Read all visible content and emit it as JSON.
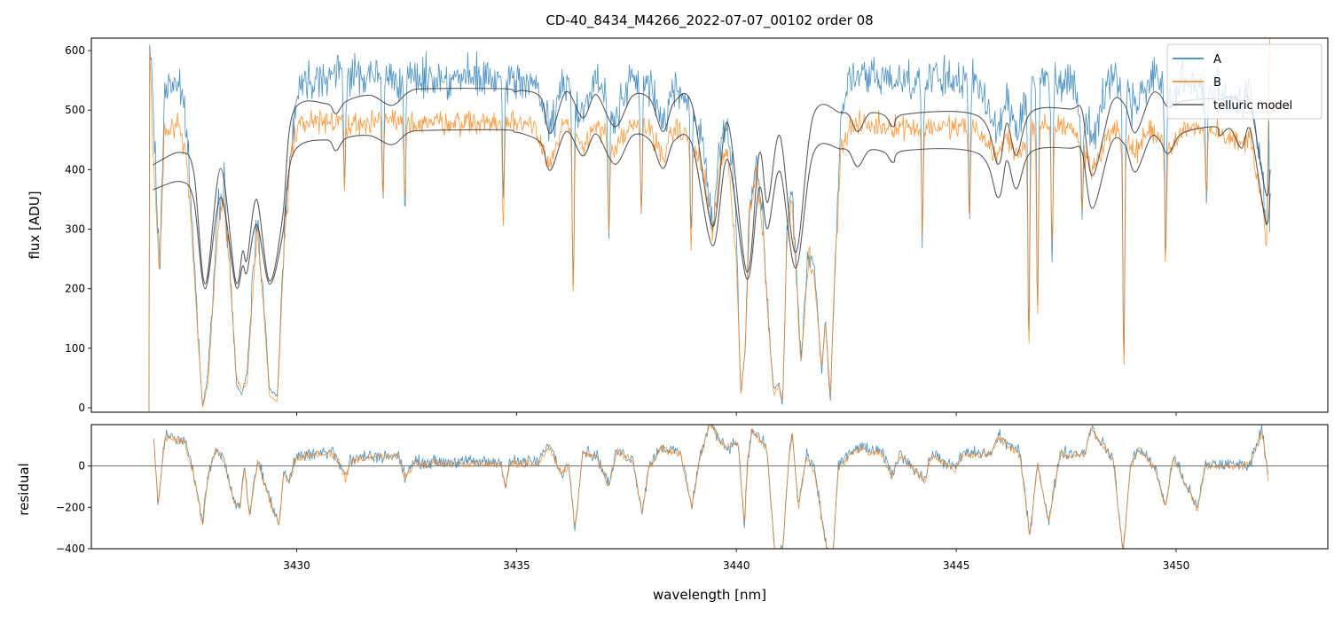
{
  "chart_data": [
    {
      "type": "line",
      "panel": "flux",
      "title": "CD-40_8434_M4266_2022-07-07_00102  order 08",
      "ylabel": "flux [ADU]",
      "xlim": [
        3425.33,
        3453.45
      ],
      "ylim": [
        -7.5,
        621
      ],
      "yticks": [
        0,
        100,
        200,
        300,
        400,
        500,
        600
      ],
      "yticklabels": [
        "0",
        "100",
        "200",
        "300",
        "400",
        "500",
        "600"
      ],
      "legend": {
        "position": "top-right",
        "labels": [
          "A",
          "B",
          "telluric model"
        ]
      },
      "colors": {
        "A": "#1f77b4",
        "B": "#ff7f0e",
        "telluric": "#333333"
      },
      "noise_rms": {
        "A": 24,
        "B": 14
      },
      "flux_knots_lambda_A_B": [
        [
          3426.64,
          -10,
          -10
        ],
        [
          3426.65,
          620,
          620
        ],
        [
          3426.73,
          520,
          430
        ],
        [
          3426.88,
          230,
          220
        ],
        [
          3427.0,
          540,
          470
        ],
        [
          3427.3,
          550,
          480
        ],
        [
          3427.5,
          470,
          420
        ],
        [
          3427.74,
          150,
          140
        ],
        [
          3427.86,
          0,
          0
        ],
        [
          3427.98,
          60,
          40
        ],
        [
          3428.21,
          320,
          300
        ],
        [
          3428.35,
          380,
          350
        ],
        [
          3428.47,
          250,
          240
        ],
        [
          3428.63,
          40,
          50
        ],
        [
          3428.75,
          20,
          30
        ],
        [
          3428.87,
          60,
          40
        ],
        [
          3429.01,
          230,
          200
        ],
        [
          3429.11,
          330,
          300
        ],
        [
          3429.23,
          200,
          180
        ],
        [
          3429.38,
          30,
          20
        ],
        [
          3429.56,
          20,
          10
        ],
        [
          3429.72,
          300,
          280
        ],
        [
          3429.86,
          430,
          410
        ],
        [
          3430.02,
          540,
          480
        ],
        [
          3430.52,
          560,
          480
        ],
        [
          3435.36,
          550,
          480
        ],
        [
          3435.77,
          470,
          410
        ],
        [
          3436.07,
          545,
          475
        ],
        [
          3436.51,
          500,
          440
        ],
        [
          3436.81,
          550,
          480
        ],
        [
          3437.24,
          490,
          430
        ],
        [
          3437.64,
          550,
          475
        ],
        [
          3438.04,
          540,
          470
        ],
        [
          3438.33,
          480,
          420
        ],
        [
          3438.59,
          540,
          470
        ],
        [
          3438.99,
          520,
          450
        ],
        [
          3439.29,
          420,
          380
        ],
        [
          3439.46,
          300,
          280
        ],
        [
          3439.6,
          420,
          400
        ],
        [
          3439.8,
          480,
          430
        ],
        [
          3440.0,
          300,
          250
        ],
        [
          3440.1,
          20,
          20
        ],
        [
          3440.2,
          100,
          100
        ],
        [
          3440.3,
          350,
          320
        ],
        [
          3440.44,
          420,
          400
        ],
        [
          3440.6,
          320,
          300
        ],
        [
          3440.77,
          100,
          100
        ],
        [
          3440.85,
          30,
          20
        ],
        [
          3440.97,
          40,
          40
        ],
        [
          3441.05,
          0,
          10
        ],
        [
          3441.15,
          300,
          280
        ],
        [
          3441.25,
          380,
          360
        ],
        [
          3441.35,
          250,
          230
        ],
        [
          3441.47,
          80,
          70
        ],
        [
          3441.65,
          280,
          260
        ],
        [
          3441.81,
          200,
          190
        ],
        [
          3441.94,
          60,
          70
        ],
        [
          3442.02,
          140,
          140
        ],
        [
          3442.14,
          10,
          20
        ],
        [
          3442.22,
          200,
          200
        ],
        [
          3442.38,
          500,
          440
        ],
        [
          3442.62,
          555,
          475
        ],
        [
          3445.44,
          550,
          470
        ],
        [
          3445.95,
          470,
          420
        ],
        [
          3446.15,
          520,
          460
        ],
        [
          3446.37,
          470,
          420
        ],
        [
          3446.75,
          555,
          470
        ],
        [
          3447.6,
          550,
          475
        ],
        [
          3448.1,
          460,
          400
        ],
        [
          3448.53,
          560,
          470
        ],
        [
          3449.07,
          510,
          430
        ],
        [
          3449.48,
          560,
          470
        ],
        [
          3449.88,
          520,
          430
        ],
        [
          3450.18,
          545,
          470
        ],
        [
          3450.89,
          540,
          470
        ],
        [
          3451.49,
          510,
          440
        ],
        [
          3451.69,
          530,
          460
        ],
        [
          3451.98,
          380,
          330
        ],
        [
          3452.06,
          300,
          260
        ],
        [
          3452.12,
          500,
          620
        ],
        [
          3452.14,
          0,
          620
        ]
      ],
      "narrow_lines_lambda_Amin_Bmin": [
        [
          3431.09,
          380,
          375
        ],
        [
          3431.96,
          350,
          360
        ],
        [
          3432.46,
          300,
          340
        ],
        [
          3434.7,
          320,
          310
        ],
        [
          3436.29,
          200,
          190
        ],
        [
          3437.1,
          300,
          300
        ],
        [
          3437.84,
          330,
          340
        ],
        [
          3438.97,
          270,
          255
        ],
        [
          3444.23,
          280,
          300
        ],
        [
          3445.3,
          320,
          320
        ],
        [
          3446.65,
          110,
          95
        ],
        [
          3446.85,
          160,
          150
        ],
        [
          3447.18,
          250,
          260
        ],
        [
          3447.86,
          330,
          330
        ],
        [
          3448.81,
          70,
          60
        ],
        [
          3449.76,
          270,
          255
        ],
        [
          3450.69,
          350,
          350
        ]
      ],
      "telluric_model_knots_lambda_upper_lower": [
        [
          3426.73,
          408,
          366
        ],
        [
          3427.36,
          429,
          380
        ],
        [
          3427.66,
          395,
          348
        ],
        [
          3427.92,
          208,
          200
        ],
        [
          3428.27,
          402,
          353
        ],
        [
          3428.61,
          213,
          205
        ],
        [
          3428.77,
          263,
          238
        ],
        [
          3428.87,
          249,
          228
        ],
        [
          3429.09,
          350,
          308
        ],
        [
          3429.38,
          213,
          208
        ],
        [
          3429.68,
          320,
          290
        ],
        [
          3429.92,
          496,
          427
        ],
        [
          3430.67,
          511,
          450
        ],
        [
          3430.89,
          494,
          432
        ],
        [
          3431.13,
          515,
          453
        ],
        [
          3431.67,
          525,
          457
        ],
        [
          3432.16,
          508,
          442
        ],
        [
          3432.54,
          530,
          462
        ],
        [
          3432.94,
          536,
          466
        ],
        [
          3434.7,
          536,
          467
        ],
        [
          3434.96,
          531,
          463
        ],
        [
          3435.16,
          533,
          460
        ],
        [
          3435.56,
          520,
          444
        ],
        [
          3435.77,
          461,
          399
        ],
        [
          3436.13,
          531,
          464
        ],
        [
          3436.51,
          487,
          423
        ],
        [
          3436.81,
          526,
          460
        ],
        [
          3437.24,
          472,
          409
        ],
        [
          3437.64,
          524,
          457
        ],
        [
          3438.04,
          518,
          449
        ],
        [
          3438.33,
          464,
          402
        ],
        [
          3438.59,
          514,
          449
        ],
        [
          3438.99,
          509,
          442
        ],
        [
          3439.46,
          305,
          272
        ],
        [
          3439.8,
          479,
          417
        ],
        [
          3440.24,
          228,
          216
        ],
        [
          3440.52,
          427,
          369
        ],
        [
          3440.71,
          345,
          301
        ],
        [
          3440.99,
          457,
          397
        ],
        [
          3441.35,
          261,
          235
        ],
        [
          3441.75,
          491,
          427
        ],
        [
          3442.36,
          496,
          435
        ],
        [
          3442.56,
          491,
          430
        ],
        [
          3442.76,
          464,
          405
        ],
        [
          3443.02,
          494,
          432
        ],
        [
          3443.37,
          491,
          429
        ],
        [
          3443.57,
          472,
          412
        ],
        [
          3443.83,
          493,
          432
        ],
        [
          3445.5,
          490,
          427
        ],
        [
          3445.95,
          409,
          353
        ],
        [
          3446.15,
          478,
          415
        ],
        [
          3446.37,
          424,
          368
        ],
        [
          3446.71,
          497,
          430
        ],
        [
          3447.6,
          502,
          436
        ],
        [
          3447.86,
          499,
          430
        ],
        [
          3448.1,
          390,
          335
        ],
        [
          3448.53,
          511,
          445
        ],
        [
          3448.83,
          509,
          442
        ],
        [
          3449.07,
          462,
          396
        ],
        [
          3449.42,
          524,
          454
        ],
        [
          3449.62,
          527,
          450
        ],
        [
          3449.82,
          505,
          427
        ],
        [
          3450.14,
          515,
          461
        ],
        [
          3450.89,
          520,
          472
        ],
        [
          3450.99,
          518,
          457
        ],
        [
          3451.23,
          522,
          469
        ],
        [
          3451.49,
          515,
          436
        ],
        [
          3451.69,
          512,
          466
        ],
        [
          3452.04,
          360,
          312
        ],
        [
          3452.14,
          400,
          360
        ]
      ]
    },
    {
      "type": "line",
      "panel": "residual",
      "xlabel": "wavelength [nm]",
      "ylabel": "residual",
      "xlim": [
        3425.33,
        3453.45
      ],
      "ylim": [
        -400,
        200
      ],
      "xticks": [
        3430,
        3435,
        3440,
        3445,
        3450
      ],
      "xticklabels": [
        "3430",
        "3435",
        "3440",
        "3445",
        "3450"
      ],
      "yticks": [
        -400,
        -200,
        0
      ],
      "yticklabels": [
        "−400",
        "−200",
        "0"
      ],
      "zero_line": true,
      "noise_rms": {
        "A": 22,
        "B": 13
      },
      "residual_knots_lambda_value": [
        [
          3426.75,
          111
        ],
        [
          3426.85,
          -187
        ],
        [
          3427.0,
          140
        ],
        [
          3427.44,
          111
        ],
        [
          3427.62,
          0
        ],
        [
          3427.86,
          -285
        ],
        [
          3427.98,
          -60
        ],
        [
          3428.17,
          85
        ],
        [
          3428.35,
          20
        ],
        [
          3428.57,
          -170
        ],
        [
          3428.71,
          -200
        ],
        [
          3428.81,
          0
        ],
        [
          3428.93,
          -240
        ],
        [
          3429.11,
          20
        ],
        [
          3429.25,
          -75
        ],
        [
          3429.44,
          -200
        ],
        [
          3429.6,
          -285
        ],
        [
          3429.7,
          -45
        ],
        [
          3429.84,
          -75
        ],
        [
          3429.98,
          40
        ],
        [
          3430.34,
          54
        ],
        [
          3430.87,
          54
        ],
        [
          3431.11,
          -60
        ],
        [
          3431.23,
          25
        ],
        [
          3431.59,
          40
        ],
        [
          3432.32,
          40
        ],
        [
          3432.46,
          -60
        ],
        [
          3432.68,
          12
        ],
        [
          3434.66,
          12
        ],
        [
          3434.74,
          -110
        ],
        [
          3434.84,
          12
        ],
        [
          3435.48,
          12
        ],
        [
          3435.75,
          97
        ],
        [
          3436.01,
          -45
        ],
        [
          3436.19,
          0
        ],
        [
          3436.33,
          -300
        ],
        [
          3436.51,
          68
        ],
        [
          3436.83,
          40
        ],
        [
          3437.1,
          -100
        ],
        [
          3437.28,
          68
        ],
        [
          3437.64,
          25
        ],
        [
          3437.86,
          -230
        ],
        [
          3438.0,
          -17
        ],
        [
          3438.27,
          85
        ],
        [
          3438.73,
          54
        ],
        [
          3438.99,
          -200
        ],
        [
          3439.17,
          40
        ],
        [
          3439.4,
          196
        ],
        [
          3439.76,
          82
        ],
        [
          3440.04,
          110
        ],
        [
          3440.18,
          -285
        ],
        [
          3440.26,
          25
        ],
        [
          3440.36,
          170
        ],
        [
          3440.69,
          82
        ],
        [
          3440.87,
          -420
        ],
        [
          3441.05,
          -420
        ],
        [
          3441.19,
          25
        ],
        [
          3441.27,
          153
        ],
        [
          3441.41,
          -200
        ],
        [
          3441.59,
          40
        ],
        [
          3441.77,
          -20
        ],
        [
          3442.06,
          -420
        ],
        [
          3442.2,
          -420
        ],
        [
          3442.32,
          0
        ],
        [
          3442.78,
          85
        ],
        [
          3443.33,
          54
        ],
        [
          3443.53,
          -50
        ],
        [
          3443.73,
          54
        ],
        [
          3444.29,
          -75
        ],
        [
          3444.44,
          54
        ],
        [
          3444.98,
          -20
        ],
        [
          3445.14,
          54
        ],
        [
          3445.81,
          54
        ],
        [
          3445.95,
          140
        ],
        [
          3446.45,
          54
        ],
        [
          3446.67,
          -340
        ],
        [
          3446.85,
          12
        ],
        [
          3447.1,
          -280
        ],
        [
          3447.36,
          54
        ],
        [
          3447.92,
          54
        ],
        [
          3448.06,
          180
        ],
        [
          3448.57,
          25
        ],
        [
          3448.79,
          -420
        ],
        [
          3448.97,
          0
        ],
        [
          3449.15,
          82
        ],
        [
          3449.52,
          -17
        ],
        [
          3449.76,
          -200
        ],
        [
          3449.94,
          40
        ],
        [
          3450.48,
          -215
        ],
        [
          3450.67,
          0
        ],
        [
          3451.67,
          0
        ],
        [
          3451.96,
          170
        ],
        [
          3452.1,
          -60
        ]
      ]
    }
  ]
}
